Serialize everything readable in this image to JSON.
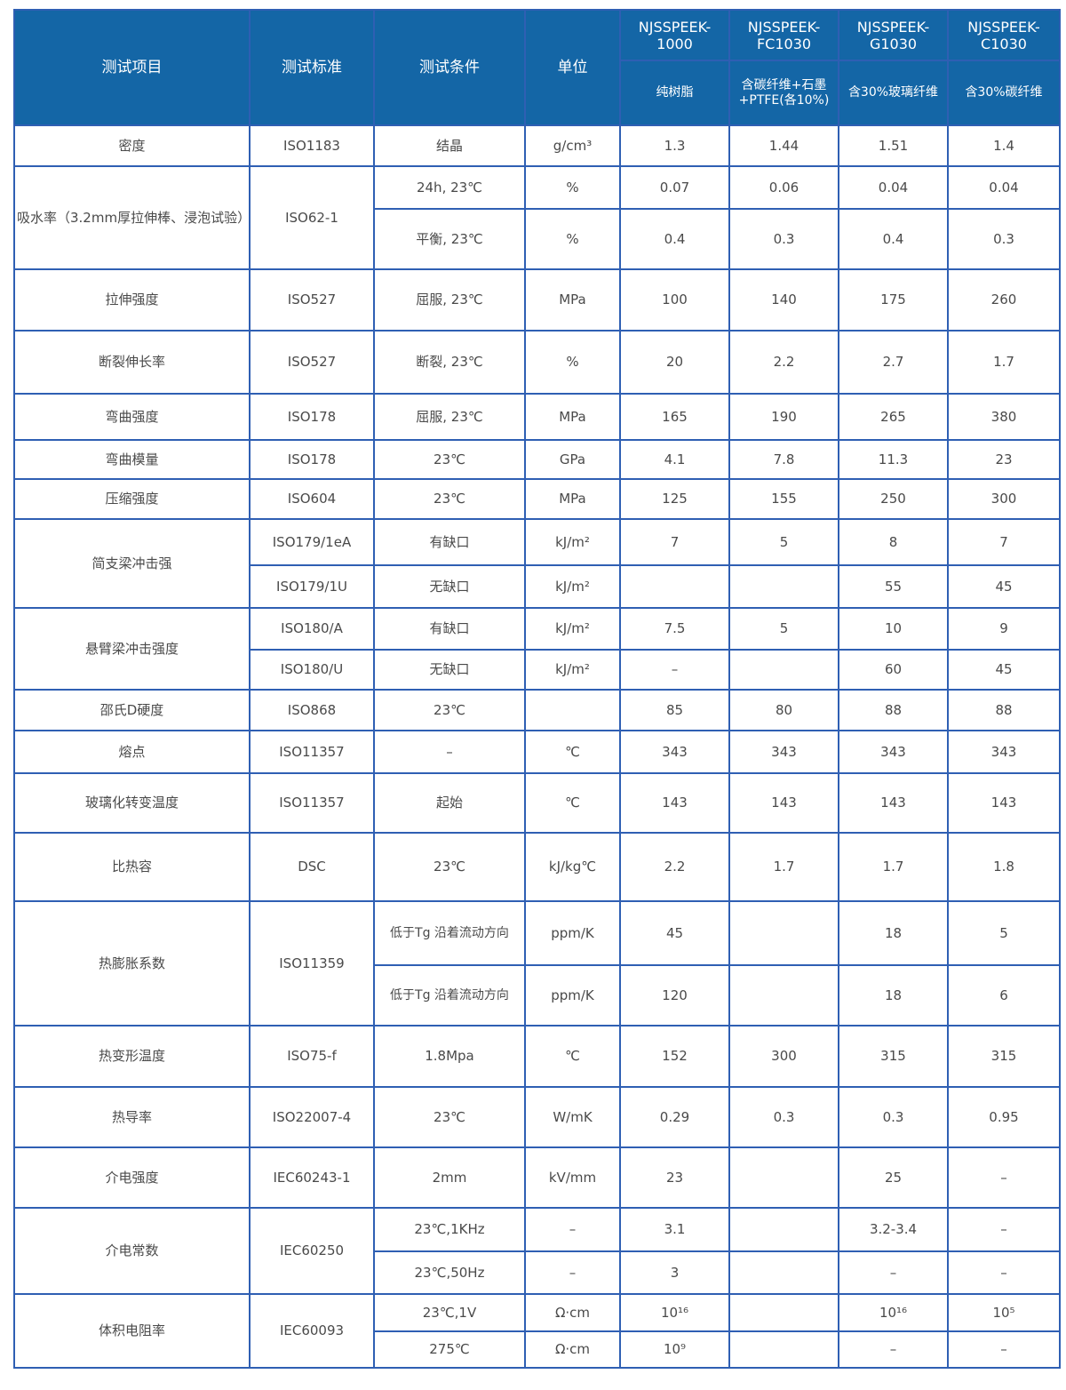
{
  "header": {
    "item": "测试项目",
    "standard": "测试标准",
    "condition": "测试条件",
    "unit": "单位",
    "grades": [
      {
        "name": "NJSSPEEK-1000",
        "desc": "纯树脂"
      },
      {
        "name": "NJSSPEEK-FC1030",
        "desc": "含碳纤维+石墨+PTFE(各10%)"
      },
      {
        "name": "NJSSPEEK-G1030",
        "desc": "含30%玻璃纤维"
      },
      {
        "name": "NJSSPEEK-C1030",
        "desc": "含30%碳纤维"
      }
    ]
  },
  "colors": {
    "header_bg": "#1466a6",
    "border": "#2f5fb3",
    "text": "#4a4a4a"
  },
  "groups": [
    {
      "item": "密度",
      "standard": "ISO1183",
      "rows": [
        {
          "cond": "结晶",
          "unit": "g/cm³",
          "v": [
            "1.3",
            "1.44",
            "1.51",
            "1.4"
          ]
        }
      ]
    },
    {
      "item": "吸水率（3.2mm厚拉伸棒、浸泡试验）",
      "standard": "ISO62-1",
      "rows": [
        {
          "cond": "24h, 23℃",
          "unit": "%",
          "v": [
            "0.07",
            "0.06",
            "0.04",
            "0.04"
          ]
        },
        {
          "cond": "平衡, 23℃",
          "unit": "%",
          "v": [
            "0.4",
            "0.3",
            "0.4",
            "0.3"
          ]
        }
      ]
    },
    {
      "item": "拉伸强度",
      "standard": "ISO527",
      "rows": [
        {
          "cond": "屈服, 23℃",
          "unit": "MPa",
          "v": [
            "100",
            "140",
            "175",
            "260"
          ]
        }
      ]
    },
    {
      "item": "断裂伸长率",
      "standard": "ISO527",
      "rows": [
        {
          "cond": "断裂, 23℃",
          "unit": "%",
          "v": [
            "20",
            "2.2",
            "2.7",
            "1.7"
          ]
        }
      ]
    },
    {
      "item": "弯曲强度",
      "standard": "ISO178",
      "rows": [
        {
          "cond": "屈服, 23℃",
          "unit": "MPa",
          "v": [
            "165",
            "190",
            "265",
            "380"
          ]
        }
      ]
    },
    {
      "item": "弯曲模量",
      "standard": "ISO178",
      "rows": [
        {
          "cond": "23℃",
          "unit": "GPa",
          "v": [
            "4.1",
            "7.8",
            "11.3",
            "23"
          ]
        }
      ]
    },
    {
      "item": "压缩强度",
      "standard": "ISO604",
      "rows": [
        {
          "cond": "23℃",
          "unit": "MPa",
          "v": [
            "125",
            "155",
            "250",
            "300"
          ]
        }
      ]
    },
    {
      "item": "简支梁冲击强",
      "standard": null,
      "rows": [
        {
          "std": "ISO179/1eA",
          "cond": "有缺口",
          "unit": "kJ/m²",
          "v": [
            "7",
            "5",
            "8",
            "7"
          ]
        },
        {
          "std": "ISO179/1U",
          "cond": "无缺口",
          "unit": "kJ/m²",
          "v": [
            "",
            "",
            "55",
            "45"
          ]
        }
      ]
    },
    {
      "item": "悬臂梁冲击强度",
      "standard": null,
      "rows": [
        {
          "std": "ISO180/A",
          "cond": "有缺口",
          "unit": "kJ/m²",
          "v": [
            "7.5",
            "5",
            "10",
            "9"
          ]
        },
        {
          "std": "ISO180/U",
          "cond": "无缺口",
          "unit": "kJ/m²",
          "v": [
            "–",
            "",
            "60",
            "45"
          ]
        }
      ]
    },
    {
      "item": "邵氏D硬度",
      "standard": "ISO868",
      "rows": [
        {
          "cond": "23℃",
          "unit": "",
          "v": [
            "85",
            "80",
            "88",
            "88"
          ]
        }
      ]
    },
    {
      "item": "熔点",
      "standard": "ISO11357",
      "rows": [
        {
          "cond": "–",
          "unit": "℃",
          "v": [
            "343",
            "343",
            "343",
            "343"
          ]
        }
      ]
    },
    {
      "item": "玻璃化转变温度",
      "standard": "ISO11357",
      "rows": [
        {
          "cond": "起始",
          "unit": "℃",
          "v": [
            "143",
            "143",
            "143",
            "143"
          ]
        }
      ]
    },
    {
      "item": "比热容",
      "standard": "DSC",
      "rows": [
        {
          "cond": "23℃",
          "unit": "kJ/kg℃",
          "v": [
            "2.2",
            "1.7",
            "1.7",
            "1.8"
          ]
        }
      ]
    },
    {
      "item": "热膨胀系数",
      "standard": "ISO11359",
      "rows": [
        {
          "cond": "低于Tg 沿着流动方向",
          "unit": "ppm/K",
          "v": [
            "45",
            "",
            "18",
            "5"
          ]
        },
        {
          "cond": "低于Tg 沿着流动方向",
          "unit": "ppm/K",
          "v": [
            "120",
            "",
            "18",
            "6"
          ]
        }
      ]
    },
    {
      "item": "热变形温度",
      "standard": "ISO75-f",
      "rows": [
        {
          "cond": "1.8Mpa",
          "unit": "℃",
          "v": [
            "152",
            "300",
            "315",
            "315"
          ]
        }
      ]
    },
    {
      "item": "热导率",
      "standard": "ISO22007-4",
      "rows": [
        {
          "cond": "23℃",
          "unit": "W/mK",
          "v": [
            "0.29",
            "0.3",
            "0.3",
            "0.95"
          ]
        }
      ]
    },
    {
      "item": "介电强度",
      "standard": "IEC60243-1",
      "rows": [
        {
          "cond": "2mm",
          "unit": "kV/mm",
          "v": [
            "23",
            "",
            "25",
            "–"
          ]
        }
      ]
    },
    {
      "item": "介电常数",
      "standard": "IEC60250",
      "rows": [
        {
          "cond": "23℃,1KHz",
          "unit": "–",
          "v": [
            "3.1",
            "",
            "3.2-3.4",
            "–"
          ]
        },
        {
          "cond": "23℃,50Hz",
          "unit": "–",
          "v": [
            "3",
            "",
            "–",
            "–"
          ]
        }
      ]
    },
    {
      "item": "体积电阻率",
      "standard": "IEC60093",
      "rows": [
        {
          "cond": "23℃,1V",
          "unit": "Ω·cm",
          "v": [
            "10¹⁶",
            "",
            "10¹⁶",
            "10⁵"
          ]
        },
        {
          "cond": "275℃",
          "unit": "Ω·cm",
          "v": [
            "10⁹",
            "",
            "–",
            "–"
          ]
        }
      ]
    }
  ]
}
